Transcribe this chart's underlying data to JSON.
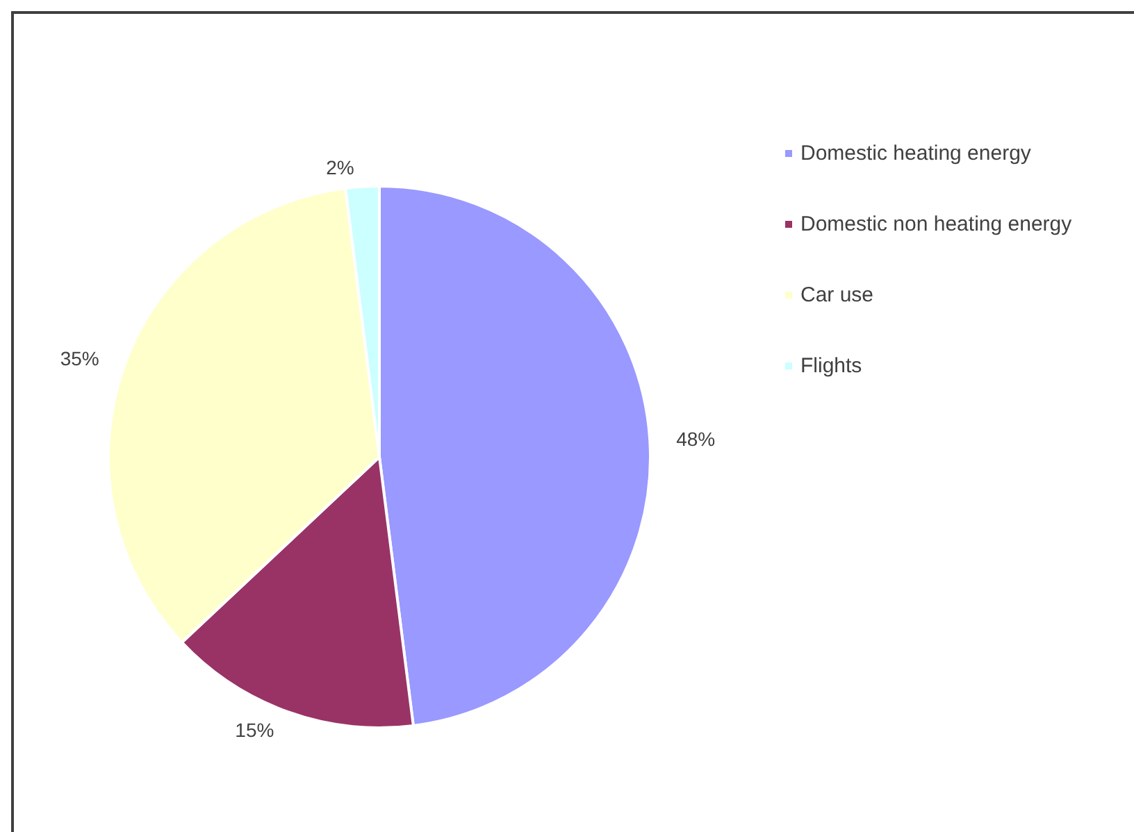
{
  "chart_data": {
    "type": "pie",
    "categories": [
      "Domestic heating energy",
      "Domestic non heating energy",
      "Car use",
      "Flights"
    ],
    "values": [
      48,
      15,
      35,
      2
    ],
    "colors": [
      "#9999ff",
      "#993366",
      "#ffffcc",
      "#ccffff"
    ],
    "value_labels": [
      "48%",
      "15%",
      "35%",
      "2%"
    ],
    "legend": "top right"
  }
}
